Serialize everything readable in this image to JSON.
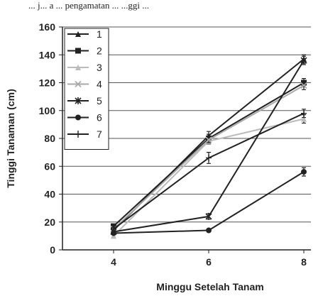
{
  "header_text": "... j... a ... pengamatan ... ...ggi ...",
  "chart_data": {
    "type": "line",
    "xlabel": "Minggu Setelah Tanam",
    "ylabel": "Tinggi Tanaman (cm)",
    "ylim": [
      0,
      160
    ],
    "yticks": [
      0,
      20,
      40,
      60,
      80,
      100,
      120,
      140,
      160
    ],
    "x": [
      4,
      6,
      8
    ],
    "x_tick_labels": [
      "4",
      "6",
      "8"
    ],
    "grid": true,
    "legend_position": "top-left",
    "series": [
      {
        "name": "1",
        "values": [
          14,
          82,
          137
        ],
        "err": [
          1,
          3,
          3
        ]
      },
      {
        "name": "2",
        "values": [
          17,
          80,
          120
        ],
        "err": [
          1,
          3,
          3
        ]
      },
      {
        "name": "3",
        "values": [
          10,
          78,
          94
        ],
        "err": [
          1,
          2,
          3
        ]
      },
      {
        "name": "4",
        "values": [
          15,
          79,
          118
        ],
        "err": [
          1,
          2,
          3
        ]
      },
      {
        "name": "5",
        "values": [
          13,
          24,
          136
        ],
        "err": [
          1,
          2,
          3
        ]
      },
      {
        "name": "6",
        "values": [
          12,
          14,
          56
        ],
        "err": [
          1,
          1,
          3
        ]
      },
      {
        "name": "7",
        "values": [
          15,
          66,
          98
        ],
        "err": [
          1,
          4,
          3
        ]
      }
    ]
  }
}
